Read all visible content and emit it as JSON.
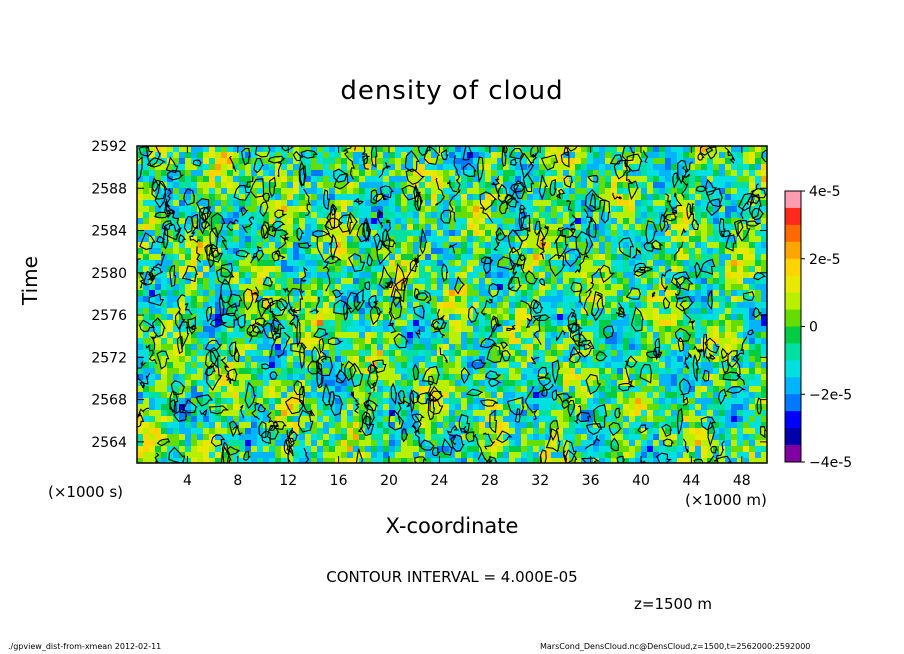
{
  "chart_data": {
    "type": "heatmap",
    "title": "density of cloud",
    "xlabel": "X-coordinate",
    "ylabel": "Time",
    "x_unit": "(×1000 m)",
    "y_unit": "(×1000 s)",
    "xlim": [
      0,
      50
    ],
    "ylim": [
      2562,
      2592
    ],
    "x_ticks": [
      4,
      8,
      12,
      16,
      20,
      24,
      28,
      32,
      36,
      40,
      44,
      48
    ],
    "y_ticks": [
      2564,
      2568,
      2572,
      2576,
      2580,
      2584,
      2588,
      2592
    ],
    "colorbar": {
      "range": [
        -4e-05,
        4e-05
      ],
      "labels": [
        "4e-5",
        "2e-5",
        "0",
        "−2e-5",
        "−4e-5"
      ],
      "label_values": [
        4e-05,
        2e-05,
        0,
        -2e-05,
        -4e-05
      ],
      "colors": [
        "#ff9db0",
        "#ff2a1a",
        "#ff6a00",
        "#ffa500",
        "#ffd400",
        "#e8e800",
        "#b8f000",
        "#66dd00",
        "#00cc44",
        "#00e0a0",
        "#00e0e0",
        "#00b4ff",
        "#0078ff",
        "#0000ff",
        "#0000aa",
        "#8000a0"
      ]
    },
    "contour_interval": "CONTOUR INTERVAL = 4.000E-05"
  },
  "annotations": {
    "z_level": "z=1500 m",
    "footer_left": "./gpview_dist-from-xmean  2012-02-11",
    "footer_right": "MarsCond_DensCloud.nc@DensCloud,z=1500,t=2562000:2592000"
  }
}
